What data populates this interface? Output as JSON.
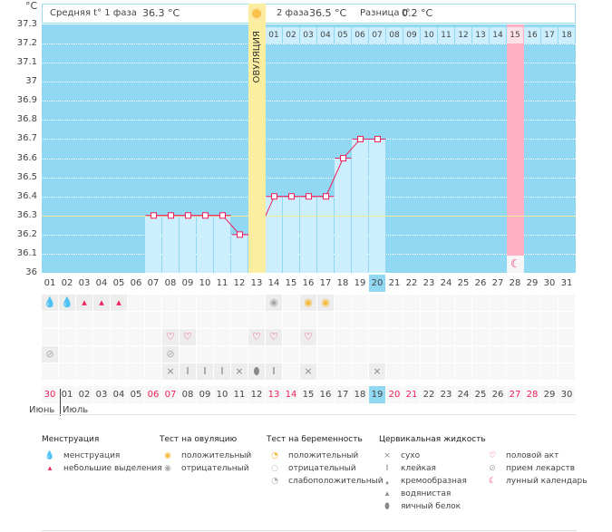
{
  "unit": "°C",
  "header": {
    "phase1_label": "Средняя t° 1 фаза",
    "phase1_value": "36.3 °C",
    "phase2_label": "2 фаза",
    "phase2_value": "36.5 °C",
    "diff_label": "Разница t°",
    "diff_value": "0.2 °C",
    "ovulation_label": "ОВУЛЯЦИЯ"
  },
  "colors": {
    "plot_bg": "#91d8f2",
    "bar": "#cdeefc",
    "ovulation": "#fbeea0",
    "moon_day": "#ffb0c4",
    "line": "#f0205a",
    "coverline": "#f5e9a0",
    "weekend": "#f0205a",
    "today": "#91d8f2"
  },
  "chart_data": {
    "type": "line",
    "ylabel": "°C",
    "ylim": [
      36,
      37.3
    ],
    "yticks": [
      "37.3",
      "37.2",
      "37.1",
      "37",
      "36.9",
      "36.8",
      "36.7",
      "36.6",
      "36.5",
      "36.4",
      "36.3",
      "36.2",
      "36.1",
      "36"
    ],
    "coverline": 36.3,
    "ovulation_day": 13,
    "cycle_days": [
      "01",
      "02",
      "03",
      "04",
      "05",
      "06",
      "07",
      "08",
      "09",
      "10",
      "11",
      "12",
      "13",
      "14",
      "15",
      "16",
      "17",
      "18",
      "19",
      "20",
      "21",
      "22",
      "23",
      "24",
      "25",
      "26",
      "27",
      "28",
      "29",
      "30",
      "31"
    ],
    "highlight_cycle_day": "20",
    "points": [
      {
        "day": 7,
        "t": 36.3
      },
      {
        "day": 8,
        "t": 36.3
      },
      {
        "day": 9,
        "t": 36.3
      },
      {
        "day": 10,
        "t": 36.3
      },
      {
        "day": 11,
        "t": 36.3
      },
      {
        "day": 12,
        "t": 36.2
      },
      {
        "day": 13,
        "t": 36.2
      },
      {
        "day": 14,
        "t": 36.4
      },
      {
        "day": 15,
        "t": 36.4
      },
      {
        "day": 16,
        "t": 36.4
      },
      {
        "day": 17,
        "t": 36.4
      },
      {
        "day": 18,
        "t": 36.6
      },
      {
        "day": 19,
        "t": 36.7
      },
      {
        "day": 20,
        "t": 36.7
      }
    ],
    "post_ovulation_days": [
      "01",
      "02",
      "03",
      "04",
      "05",
      "06",
      "07",
      "08",
      "09",
      "10",
      "11",
      "12",
      "13",
      "14",
      "15",
      "16",
      "17",
      "18"
    ],
    "expected_period_day": 28
  },
  "calendar": {
    "dates": [
      "30",
      "01",
      "02",
      "03",
      "04",
      "05",
      "06",
      "07",
      "08",
      "09",
      "10",
      "11",
      "12",
      "13",
      "14",
      "15",
      "16",
      "17",
      "18",
      "19",
      "20",
      "21",
      "22",
      "23",
      "24",
      "25",
      "26",
      "27",
      "28",
      "29",
      "30"
    ],
    "weekend_index": [
      0,
      6,
      7,
      13,
      14,
      20,
      21,
      27,
      28
    ],
    "today_index": 19,
    "months": [
      "Июнь",
      "Июль"
    ]
  },
  "marks": [
    {
      "row": 0,
      "day": 1,
      "icon": "menstruation"
    },
    {
      "row": 0,
      "day": 2,
      "icon": "menstruation"
    },
    {
      "row": 0,
      "day": 3,
      "icon": "spotting"
    },
    {
      "row": 0,
      "day": 4,
      "icon": "spotting"
    },
    {
      "row": 0,
      "day": 5,
      "icon": "spotting"
    },
    {
      "row": 0,
      "day": 14,
      "icon": "ovulation-negative"
    },
    {
      "row": 0,
      "day": 16,
      "icon": "ovulation-positive"
    },
    {
      "row": 0,
      "day": 17,
      "icon": "ovulation-positive"
    },
    {
      "row": 2,
      "day": 8,
      "icon": "heart"
    },
    {
      "row": 2,
      "day": 9,
      "icon": "heart"
    },
    {
      "row": 2,
      "day": 13,
      "icon": "heart"
    },
    {
      "row": 2,
      "day": 14,
      "icon": "heart"
    },
    {
      "row": 2,
      "day": 16,
      "icon": "heart"
    },
    {
      "row": 3,
      "day": 1,
      "icon": "pill"
    },
    {
      "row": 3,
      "day": 8,
      "icon": "pill"
    },
    {
      "row": 4,
      "day": 8,
      "icon": "dry"
    },
    {
      "row": 4,
      "day": 9,
      "icon": "sticky"
    },
    {
      "row": 4,
      "day": 10,
      "icon": "sticky"
    },
    {
      "row": 4,
      "day": 11,
      "icon": "sticky"
    },
    {
      "row": 4,
      "day": 12,
      "icon": "dry"
    },
    {
      "row": 4,
      "day": 13,
      "icon": "eggwhite"
    },
    {
      "row": 4,
      "day": 14,
      "icon": "sticky"
    },
    {
      "row": 4,
      "day": 16,
      "icon": "dry"
    },
    {
      "row": 4,
      "day": 20,
      "icon": "dry"
    }
  ],
  "legend": [
    {
      "title": "Менструация",
      "items": [
        {
          "icon": "menstruation",
          "label": "менструация"
        },
        {
          "icon": "spotting",
          "label": "небольшие выделения"
        }
      ]
    },
    {
      "title": "Тест на овуляцию",
      "items": [
        {
          "icon": "ovulation-positive",
          "label": "положительный"
        },
        {
          "icon": "ovulation-negative",
          "label": "отрицательный"
        }
      ]
    },
    {
      "title": "Тест на беременность",
      "items": [
        {
          "icon": "pregnancy-positive",
          "label": "положительный"
        },
        {
          "icon": "pregnancy-negative",
          "label": "отрицательный"
        },
        {
          "icon": "pregnancy-weak",
          "label": "слабоположительный"
        }
      ]
    },
    {
      "title": "Цервикальная жидкость",
      "items": [
        {
          "icon": "dry",
          "label": "сухо"
        },
        {
          "icon": "sticky",
          "label": "клейкая"
        },
        {
          "icon": "creamy",
          "label": "кремообразная"
        },
        {
          "icon": "watery",
          "label": "водянистая"
        },
        {
          "icon": "eggwhite",
          "label": "яичный белок"
        }
      ]
    },
    {
      "title": "",
      "items": [
        {
          "icon": "heart",
          "label": "половой акт"
        },
        {
          "icon": "pill",
          "label": "прием лекарств"
        },
        {
          "icon": "moon",
          "label": "лунный календарь"
        }
      ]
    }
  ]
}
